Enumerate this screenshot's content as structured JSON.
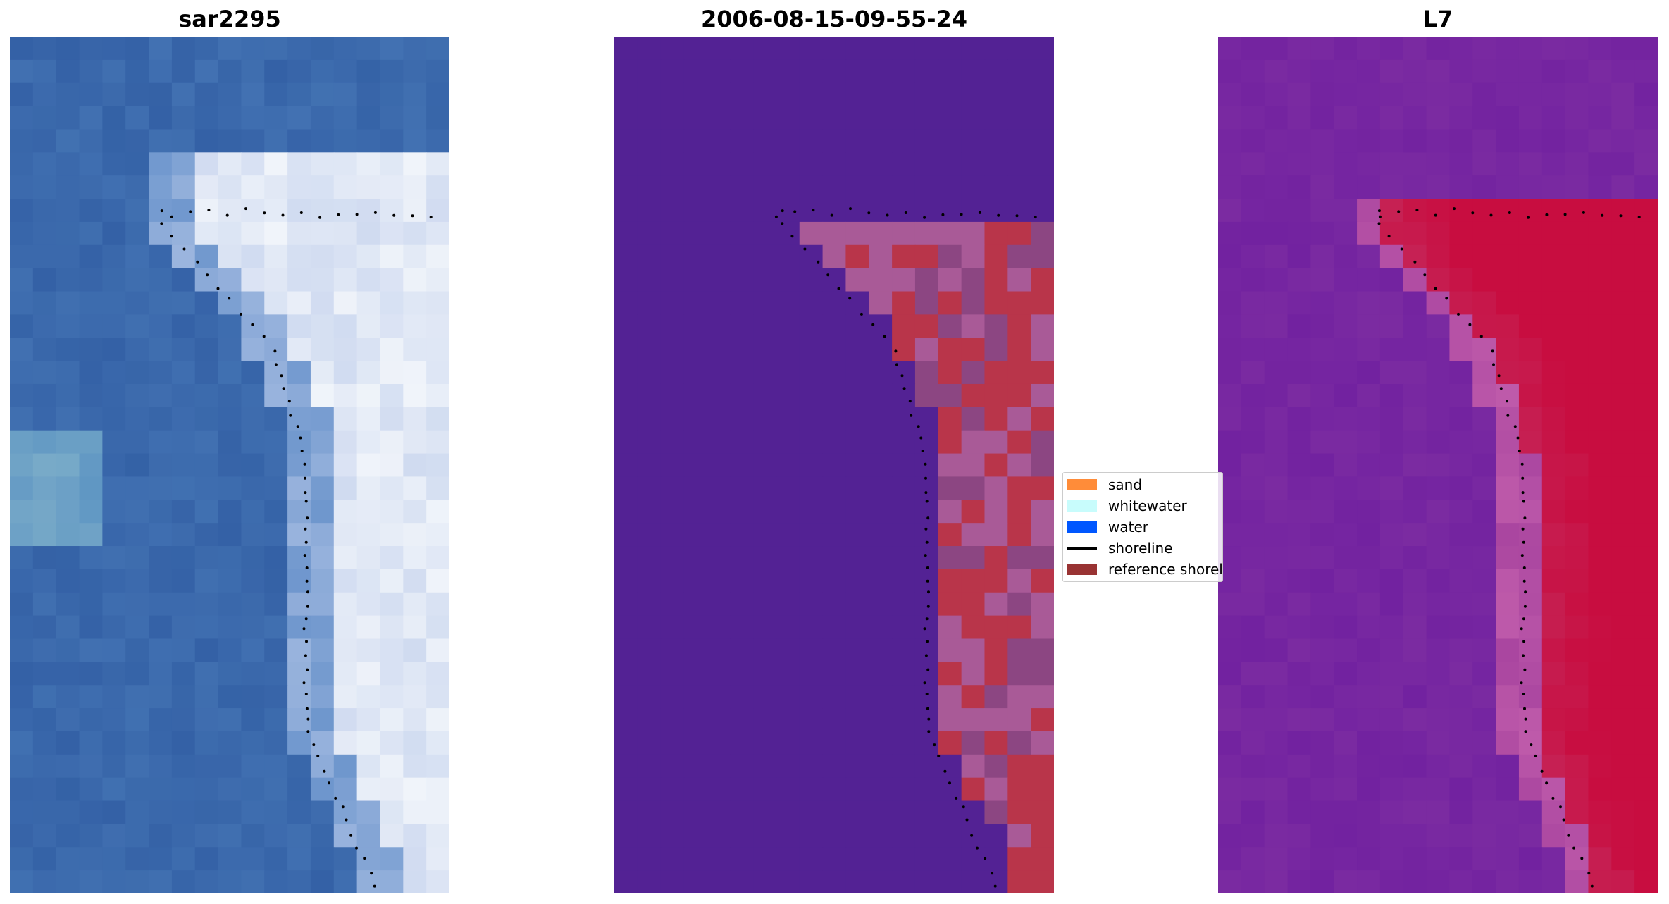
{
  "panels": [
    {
      "title": "sar2295",
      "palette": "rgb"
    },
    {
      "title": "2006-08-15-09-55-24",
      "palette": "classified"
    },
    {
      "title": "L7",
      "palette": "index"
    }
  ],
  "legend": {
    "items": [
      {
        "label": "sand",
        "color": "#ff8c39",
        "kind": "patch"
      },
      {
        "label": "whitewater",
        "color": "#c8fcfc",
        "kind": "patch"
      },
      {
        "label": "water",
        "color": "#0057ff",
        "kind": "patch"
      },
      {
        "label": "shoreline",
        "color": "#000000",
        "kind": "line"
      },
      {
        "label": "reference shoreline",
        "color": "#993333",
        "kind": "patch"
      }
    ]
  },
  "colors": {
    "sea_blue": "#3461a6",
    "white_surf": "#f4f6fa",
    "water_purple": "#532294",
    "land_red": "#b9354a",
    "land_pink": "#a95a97",
    "index_purple": "#7b2ba1",
    "index_red": "#c80d40"
  }
}
